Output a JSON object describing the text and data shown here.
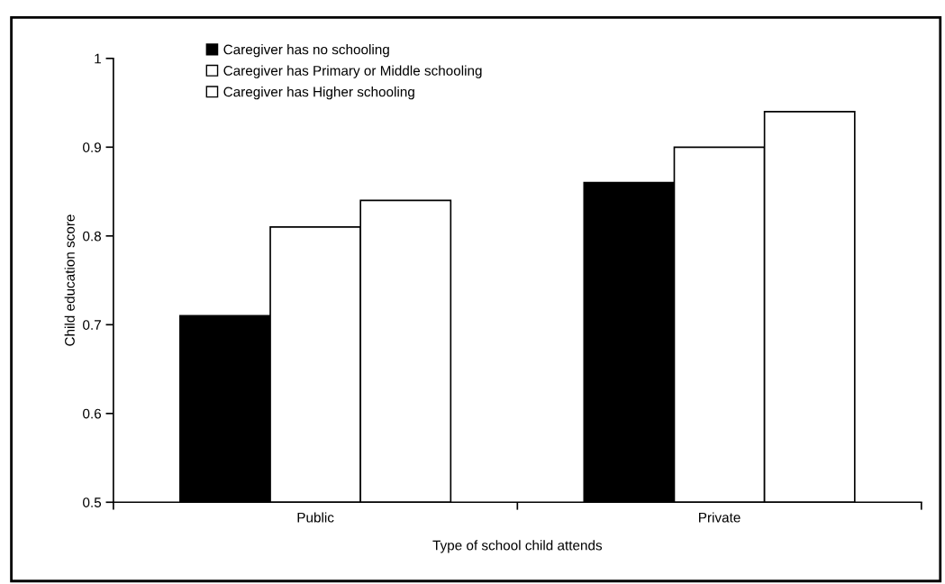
{
  "chart_data": {
    "type": "bar",
    "xlabel": "Type of school child attends",
    "ylabel": "Child education score",
    "categories": [
      "Public",
      "Private"
    ],
    "series": [
      {
        "name": "Caregiver has no schooling",
        "color": "#000000",
        "values": [
          0.71,
          0.86
        ]
      },
      {
        "name": "Caregiver has Primary or Middle schooling",
        "color": "#ffffff",
        "values": [
          0.81,
          0.9
        ]
      },
      {
        "name": "Caregiver has Higher schooling",
        "color": "#ffffff",
        "values": [
          0.84,
          0.94
        ]
      }
    ],
    "ylim": [
      0.5,
      1
    ],
    "yticks": [
      0.5,
      0.6,
      0.7,
      0.8,
      0.9,
      1
    ],
    "grid": false,
    "legend": "top left"
  }
}
